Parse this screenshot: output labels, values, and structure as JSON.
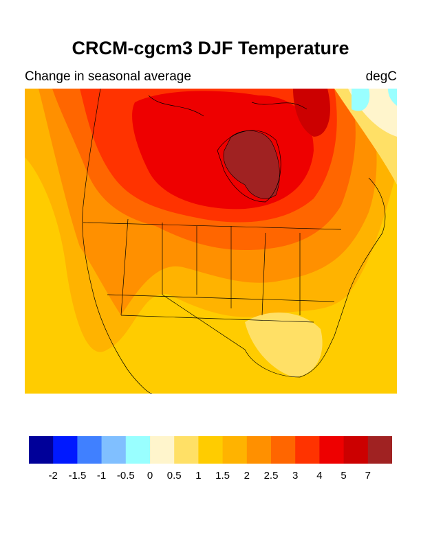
{
  "title": "CRCM-cgcm3 DJF Temperature",
  "subtitle_left": "Change in seasonal average",
  "subtitle_right": "degC",
  "colorbar": {
    "colors": [
      "#000099",
      "#0019ff",
      "#4080ff",
      "#80bfff",
      "#99ffff",
      "#fff5cc",
      "#ffe066",
      "#ffcc00",
      "#ffb300",
      "#ff9000",
      "#ff6600",
      "#ff3300",
      "#ee0000",
      "#cc0000",
      "#a02222"
    ],
    "labels": [
      "-2",
      "-1.5",
      "-1",
      "-0.5",
      "0",
      "0.5",
      "1",
      "1.5",
      "2",
      "2.5",
      "3",
      "4",
      "5",
      "7"
    ]
  }
}
